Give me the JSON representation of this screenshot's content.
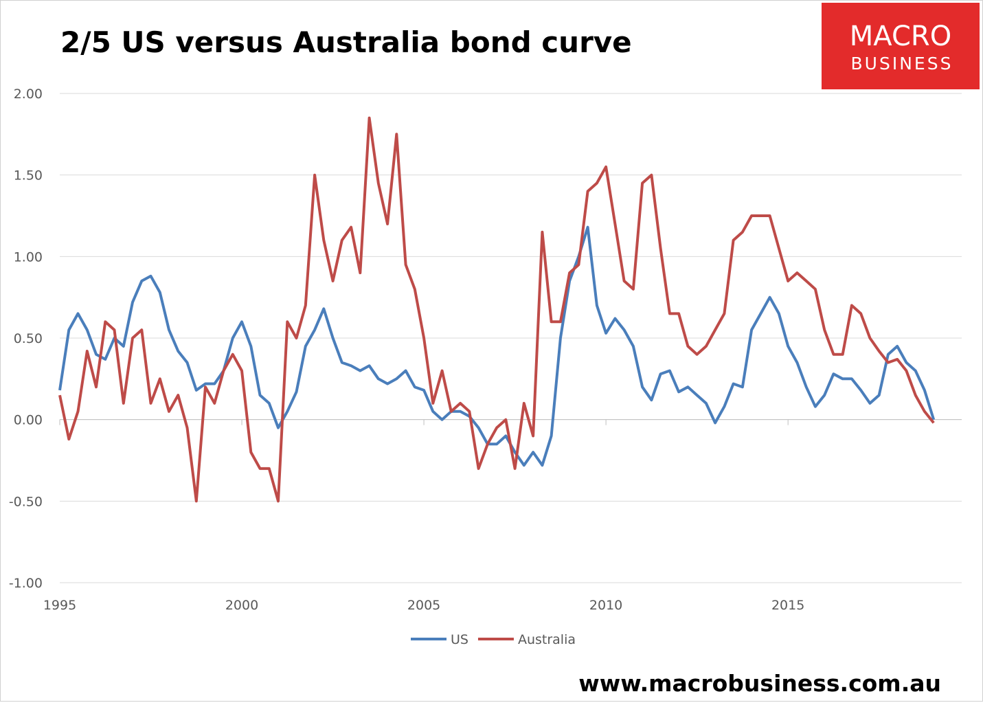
{
  "chart_data": {
    "type": "line",
    "title": "2/5 US versus Australia bond curve",
    "logo": [
      "MACRO",
      "BUSINESS"
    ],
    "footer": "www.macrobusiness.com.au",
    "x": [
      1995,
      1995.25,
      1995.5,
      1995.75,
      1996,
      1996.25,
      1996.5,
      1996.75,
      1997,
      1997.25,
      1997.5,
      1997.75,
      1998,
      1998.25,
      1998.5,
      1998.75,
      1999,
      1999.25,
      1999.5,
      1999.75,
      2000,
      2000.25,
      2000.5,
      2000.75,
      2001,
      2001.25,
      2001.5,
      2001.75,
      2002,
      2002.25,
      2002.5,
      2002.75,
      2003,
      2003.25,
      2003.5,
      2003.75,
      2004,
      2004.25,
      2004.5,
      2004.75,
      2005,
      2005.25,
      2005.5,
      2005.75,
      2006,
      2006.25,
      2006.5,
      2006.75,
      2007,
      2007.25,
      2007.5,
      2007.75,
      2008,
      2008.25,
      2008.5,
      2008.75,
      2009,
      2009.25,
      2009.5,
      2009.75,
      2010,
      2010.25,
      2010.5,
      2010.75,
      2011,
      2011.25,
      2011.5,
      2011.75,
      2012,
      2012.25,
      2012.5,
      2012.75,
      2013,
      2013.25,
      2013.5,
      2013.75,
      2014,
      2014.25,
      2014.5,
      2014.75,
      2015,
      2015.25,
      2015.5,
      2015.75,
      2016,
      2016.25,
      2016.5,
      2016.75,
      2017,
      2017.25,
      2017.5,
      2017.75,
      2018,
      2018.25,
      2018.5,
      2018.75,
      2019
    ],
    "series": [
      {
        "name": "US",
        "color": "#4a7ebb",
        "values": [
          0.18,
          0.55,
          0.65,
          0.55,
          0.4,
          0.37,
          0.5,
          0.45,
          0.72,
          0.85,
          0.88,
          0.78,
          0.55,
          0.42,
          0.35,
          0.18,
          0.22,
          0.22,
          0.3,
          0.5,
          0.6,
          0.45,
          0.15,
          0.1,
          -0.05,
          0.05,
          0.17,
          0.45,
          0.55,
          0.68,
          0.5,
          0.35,
          0.33,
          0.3,
          0.33,
          0.25,
          0.22,
          0.25,
          0.3,
          0.2,
          0.18,
          0.05,
          0.0,
          0.05,
          0.05,
          0.02,
          -0.05,
          -0.15,
          -0.15,
          -0.1,
          -0.2,
          -0.28,
          -0.2,
          -0.28,
          -0.1,
          0.5,
          0.85,
          1.0,
          1.18,
          0.7,
          0.53,
          0.62,
          0.55,
          0.45,
          0.2,
          0.12,
          0.28,
          0.3,
          0.17,
          0.2,
          0.15,
          0.1,
          -0.02,
          0.08,
          0.22,
          0.2,
          0.55,
          0.65,
          0.75,
          0.65,
          0.45,
          0.35,
          0.2,
          0.08,
          0.15,
          0.28,
          0.25,
          0.25,
          0.18,
          0.1,
          0.15,
          0.4,
          0.45,
          0.35,
          0.3,
          0.18,
          0.0
        ]
      },
      {
        "name": "Australia",
        "color": "#be4b48",
        "values": [
          0.15,
          -0.12,
          0.05,
          0.42,
          0.2,
          0.6,
          0.55,
          0.1,
          0.5,
          0.55,
          0.1,
          0.25,
          0.05,
          0.15,
          -0.05,
          -0.5,
          0.2,
          0.1,
          0.3,
          0.4,
          0.3,
          -0.2,
          -0.3,
          -0.3,
          -0.5,
          0.6,
          0.5,
          0.7,
          1.5,
          1.1,
          0.85,
          1.1,
          1.18,
          0.9,
          1.85,
          1.45,
          1.2,
          1.75,
          0.95,
          0.8,
          0.5,
          0.1,
          0.3,
          0.05,
          0.1,
          0.05,
          -0.3,
          -0.15,
          -0.05,
          0.0,
          -0.3,
          0.1,
          -0.1,
          1.15,
          0.6,
          0.6,
          0.9,
          0.95,
          1.4,
          1.45,
          1.55,
          1.2,
          0.85,
          0.8,
          1.45,
          1.5,
          1.05,
          0.65,
          0.65,
          0.45,
          0.4,
          0.45,
          0.55,
          0.65,
          1.1,
          1.15,
          1.25,
          1.25,
          1.25,
          1.05,
          0.85,
          0.9,
          0.85,
          0.8,
          0.55,
          0.4,
          0.4,
          0.7,
          0.65,
          0.5,
          0.42,
          0.35,
          0.37,
          0.3,
          0.15,
          0.05,
          -0.02
        ]
      }
    ],
    "xlim": [
      1995,
      2019.77
    ],
    "xticks": [
      1995,
      2000,
      2005,
      2010,
      2015
    ],
    "ylim": [
      -1,
      2
    ],
    "yticks": [
      {
        "value": -1,
        "label": "-1.00"
      },
      {
        "value": -0.5,
        "label": "-0.50"
      },
      {
        "value": 0,
        "label": "0.00"
      },
      {
        "value": 0.5,
        "label": "0.50"
      },
      {
        "value": 1,
        "label": "1.00"
      },
      {
        "value": 1.5,
        "label": "1.50"
      },
      {
        "value": 2,
        "label": "2.00"
      }
    ],
    "grid": true,
    "legend": "bottom"
  }
}
